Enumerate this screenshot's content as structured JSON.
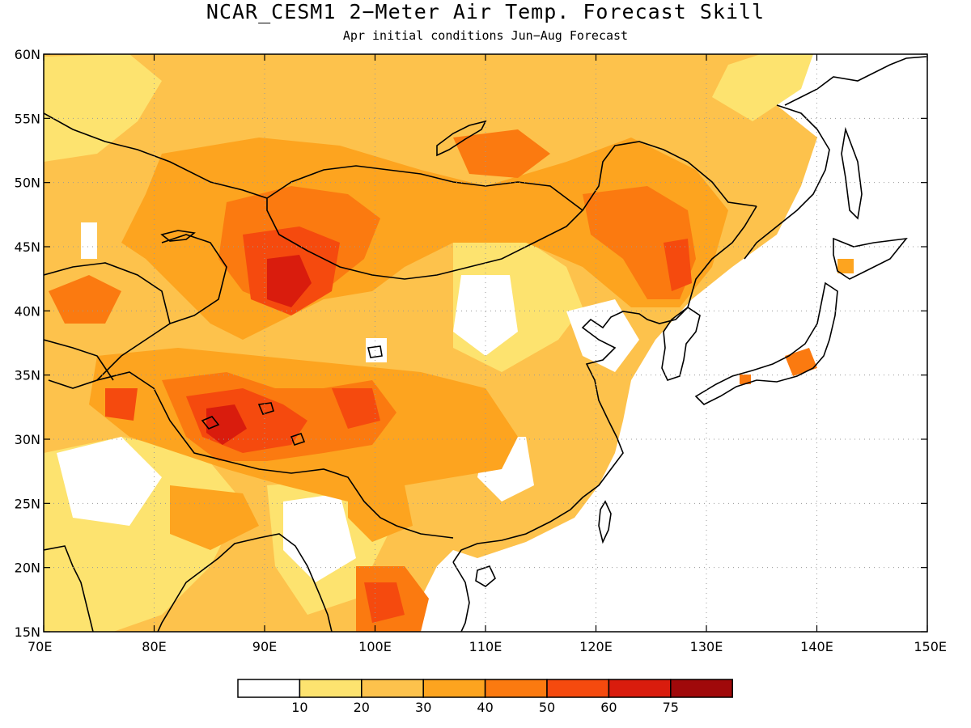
{
  "title": "NCAR_CESM1 2−Meter Air Temp. Forecast Skill",
  "subtitle": "Apr initial conditions  Jun−Aug Forecast",
  "map": {
    "lon_range": [
      70,
      150
    ],
    "lat_range": [
      15,
      60
    ],
    "x_ticks": [
      "70E",
      "80E",
      "90E",
      "100E",
      "110E",
      "120E",
      "130E",
      "140E",
      "150E"
    ],
    "y_ticks": [
      "60N",
      "55N",
      "50N",
      "45N",
      "40N",
      "35N",
      "30N",
      "25N",
      "20N",
      "15N"
    ],
    "grid": "dotted"
  },
  "colorbar": {
    "labels": [
      "10",
      "20",
      "30",
      "40",
      "50",
      "60",
      "75"
    ],
    "colors": [
      "#ffffff",
      "#fde36f",
      "#fdc24c",
      "#fda41f",
      "#fb7a10",
      "#f54a0e",
      "#d91c0d",
      "#a0090a"
    ]
  }
}
